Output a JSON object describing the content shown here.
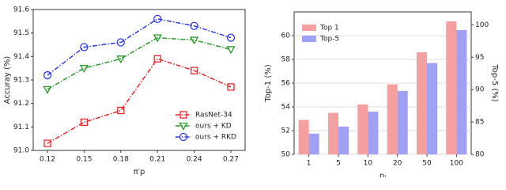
{
  "chart_data": [
    {
      "type": "line",
      "xlabel": "π′p",
      "ylabel": "Accuray (%)",
      "categories": [
        "0.12",
        "0.15",
        "0.18",
        "0.21",
        "0.24",
        "0.27"
      ],
      "ylim": [
        91.0,
        91.6
      ],
      "yticks": [
        {
          "value": 91.0,
          "label": "91.0"
        },
        91.1,
        91.2,
        91.3,
        91.4,
        91.5,
        91.6
      ],
      "legend": "lower right",
      "series": [
        {
          "name": "RasNet-34",
          "color": "#e8262a",
          "marker": "square",
          "values": [
            91.03,
            91.12,
            91.17,
            91.39,
            91.34,
            91.27
          ]
        },
        {
          "name": "ours + KD",
          "color": "#2a9a2a",
          "marker": "triangle",
          "values": [
            91.26,
            91.35,
            91.39,
            91.48,
            91.47,
            91.43
          ]
        },
        {
          "name": "ours + RKD",
          "color": "#2a3ae0",
          "marker": "circle",
          "values": [
            91.32,
            91.44,
            91.46,
            91.56,
            91.53,
            91.48
          ]
        }
      ]
    },
    {
      "type": "bar",
      "xlabel": "nₗ",
      "ylabel": "Top-1 (%)",
      "y2label": "Top-5 (%)",
      "categories": [
        "1",
        "5",
        "10",
        "20",
        "50",
        "100"
      ],
      "ylim": [
        50,
        62
      ],
      "yticks": [
        50,
        52,
        54,
        56,
        58,
        60
      ],
      "y2lim": [
        80,
        102
      ],
      "y2ticks": [
        80,
        85,
        90,
        95,
        100
      ],
      "legend": "upper left",
      "grid": true,
      "series": [
        {
          "name": "Top 1",
          "color": "#f4a0a0",
          "values": [
            52.9,
            53.5,
            54.2,
            55.9,
            58.6,
            61.2
          ]
        },
        {
          "name": "Top-5",
          "color": "#a0a0f4",
          "axis": "y2",
          "values": [
            83.2,
            84.3,
            86.6,
            89.8,
            94.1,
            99.2
          ]
        }
      ]
    }
  ]
}
